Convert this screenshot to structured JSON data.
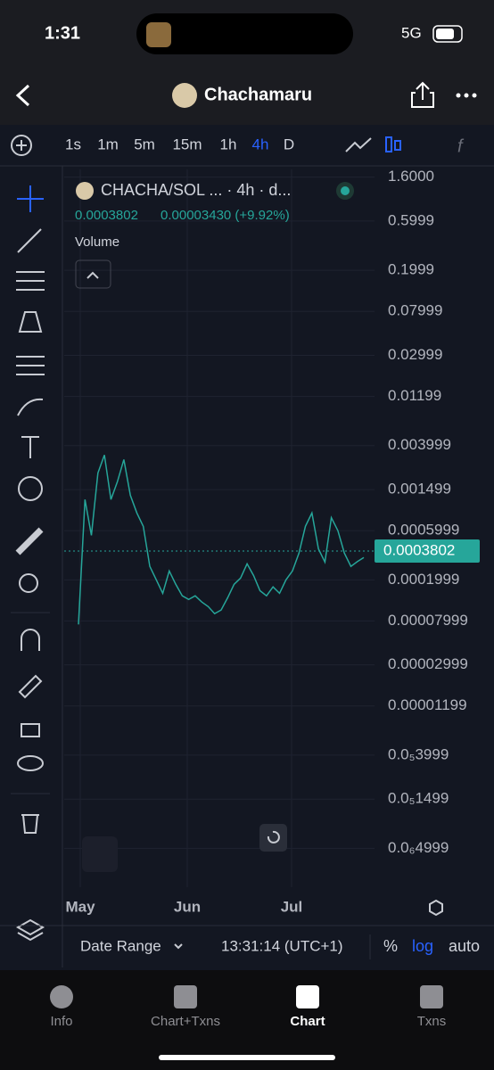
{
  "status_bar": {
    "time": "1:31",
    "network": "5G"
  },
  "header": {
    "title": "Chachamaru"
  },
  "toolbar": {
    "intervals": [
      "1s",
      "1m",
      "5m",
      "15m",
      "1h",
      "4h",
      "D"
    ],
    "active_interval_index": 5
  },
  "chart": {
    "type": "line",
    "legend": "CHACHA/SOL ... · 4h · d...",
    "last_price": 0.0003802,
    "change": "0.00003430 (+9.92%)",
    "volume_label": "Volume",
    "x_labels": [
      "May",
      "Jun",
      "Jul"
    ],
    "log_scale": true,
    "color": "#26a69a",
    "ylim": [
      2.1e-07,
      1.9
    ],
    "yticks": [
      {
        "value": 1.6,
        "label": "1.6000"
      },
      {
        "value": 0.5999,
        "label": "0.5999"
      },
      {
        "value": 0.1999,
        "label": "0.1999"
      },
      {
        "value": 0.07999,
        "label": "0.07999"
      },
      {
        "value": 0.02999,
        "label": "0.02999"
      },
      {
        "value": 0.01199,
        "label": "0.01199"
      },
      {
        "value": 0.003999,
        "label": "0.003999"
      },
      {
        "value": 0.001499,
        "label": "0.001499"
      },
      {
        "value": 0.0005999,
        "label": "0.0005999"
      },
      {
        "value": 0.0001999,
        "label": "0.0001999"
      },
      {
        "value": 7.999e-05,
        "label": "0.00007999"
      },
      {
        "value": 2.999e-05,
        "label": "0.00002999"
      },
      {
        "value": 1.199e-05,
        "label": "0.00001199"
      },
      {
        "value": 3.999e-06,
        "label": "0.0₅3999"
      },
      {
        "value": 1.499e-06,
        "label": "0.0₅1499"
      },
      {
        "value": 4.999e-07,
        "label": "0.0₆4999"
      }
    ],
    "values": [
      7.4e-05,
      0.0012,
      0.00054,
      0.00217,
      0.00324,
      0.0012,
      0.00178,
      0.00293,
      0.00132,
      0.00089,
      0.00066,
      0.00027,
      0.0002,
      0.000148,
      0.000244,
      0.000181,
      0.00014,
      0.000129,
      0.00014,
      0.000122,
      0.00011,
      9.4e-05,
      0.000102,
      0.000134,
      0.000181,
      0.000208,
      0.000286,
      0.00022,
      0.000157,
      0.00014,
      0.000171,
      0.000148,
      0.0002,
      0.000244,
      0.000363,
      0.00066,
      0.00089,
      0.0004,
      0.000297,
      0.0008,
      0.0006,
      0.000363,
      0.00027,
      0.0003,
      0.000329
    ]
  },
  "bottom_bar": {
    "date_range": "Date Range",
    "time": "13:31:14 (UTC+1)",
    "options": [
      "%",
      "log",
      "auto"
    ],
    "active_option_index": 1
  },
  "tabs": [
    {
      "label": "Info"
    },
    {
      "label": "Chart+Txns"
    },
    {
      "label": "Chart"
    },
    {
      "label": "Txns"
    }
  ],
  "active_tab_index": 2
}
